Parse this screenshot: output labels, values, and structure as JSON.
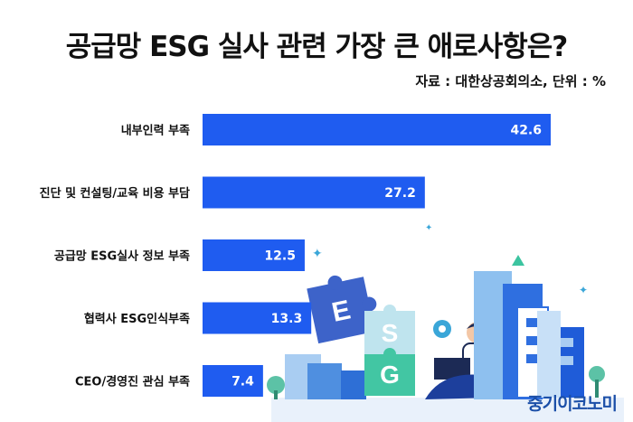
{
  "header": {
    "title": "공급망 ESG 실사 관련 가장 큰 애로사항은?",
    "source": "자료 : 대한상공회의소, 단위 : %"
  },
  "brand": {
    "name": "중기이코노미"
  },
  "colors": {
    "bar": "#1f5cf0",
    "bar_label": "#ffffff",
    "category_label": "#111111"
  },
  "illustration": {
    "puzzle_letters": [
      "E",
      "S",
      "G"
    ]
  },
  "chart_data": {
    "type": "bar",
    "orientation": "horizontal",
    "title": "공급망 ESG 실사 관련 가장 큰 애로사항은?",
    "unit": "%",
    "categories": [
      "내부인력 부족",
      "진단 및 컨설팅/교육 비용 부담",
      "공급망 ESG실사 정보 부족",
      "협력사 ESG인식부족",
      "CEO/경영진 관심 부족"
    ],
    "values": [
      42.6,
      27.2,
      12.5,
      13.3,
      7.4
    ],
    "value_labels": [
      "42.6",
      "27.2",
      "12.5",
      "13.3",
      "7.4"
    ],
    "xlim": [
      0,
      45
    ],
    "grid": false,
    "legend": "none"
  }
}
